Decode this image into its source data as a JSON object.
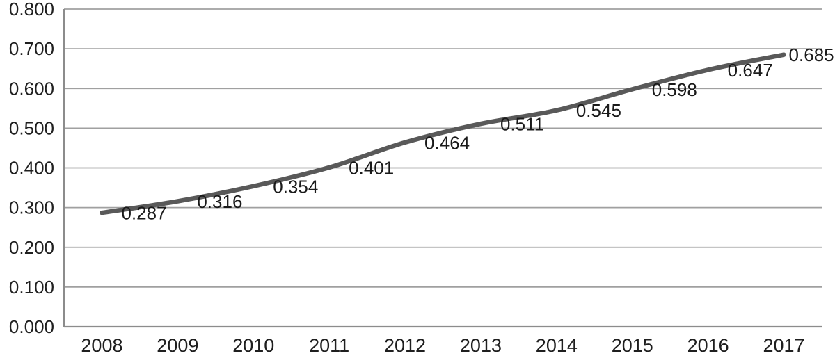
{
  "chart_data": {
    "type": "line",
    "title": "",
    "xlabel": "",
    "ylabel": "",
    "x": [
      "2008",
      "2009",
      "2010",
      "2011",
      "2012",
      "2013",
      "2014",
      "2015",
      "2016",
      "2017"
    ],
    "values": [
      0.287,
      0.316,
      0.354,
      0.401,
      0.464,
      0.511,
      0.545,
      0.598,
      0.647,
      0.685
    ],
    "data_labels": [
      "0.287",
      "0.316",
      "0.354",
      "0.401",
      "0.464",
      "0.511",
      "0.545",
      "0.598",
      "0.647",
      "0.685"
    ],
    "y_ticks": [
      "0.000",
      "0.100",
      "0.200",
      "0.300",
      "0.400",
      "0.500",
      "0.600",
      "0.700",
      "0.800"
    ],
    "ylim": [
      0.0,
      0.8
    ],
    "grid": true,
    "legend": "none",
    "line_color": "#595959",
    "grid_color": "#a0a0a0",
    "axis_color": "#8c8c8c",
    "text_color": "#1f1f1f",
    "background": "#ffffff"
  }
}
